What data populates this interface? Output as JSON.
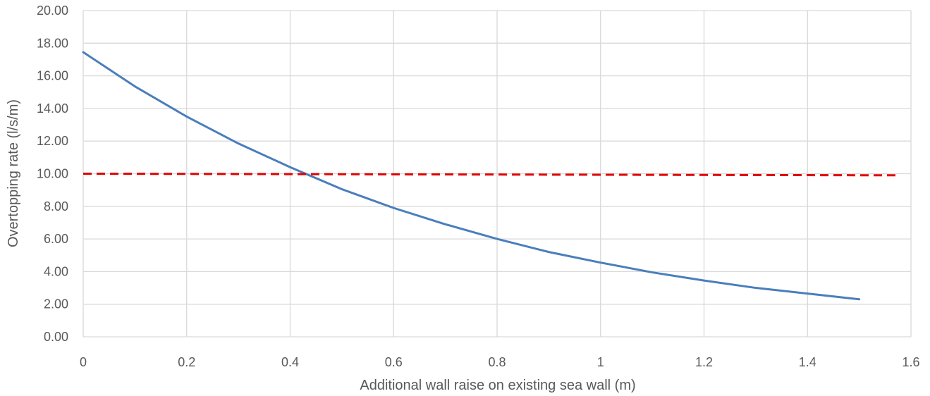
{
  "chart_data": {
    "type": "line",
    "title": "",
    "xlabel": "Additional wall raise on existing sea wall (m)",
    "ylabel": "Overtopping rate (l/s/m)",
    "xlim": [
      0,
      1.6
    ],
    "ylim": [
      0,
      20
    ],
    "x_ticks": [
      "0",
      "0.2",
      "0.4",
      "0.6",
      "0.8",
      "1",
      "1.2",
      "1.4",
      "1.6"
    ],
    "y_ticks": [
      "0.00",
      "2.00",
      "4.00",
      "6.00",
      "8.00",
      "10.00",
      "12.00",
      "14.00",
      "16.00",
      "18.00",
      "20.00"
    ],
    "grid": true,
    "legend": false,
    "series": [
      {
        "style": "solid",
        "color": "#4a7ebb",
        "x": [
          0,
          0.1,
          0.2,
          0.3,
          0.4,
          0.5,
          0.6,
          0.7,
          0.8,
          0.9,
          1.0,
          1.1,
          1.2,
          1.3,
          1.4,
          1.5
        ],
        "y": [
          17.45,
          15.35,
          13.5,
          11.85,
          10.4,
          9.05,
          7.9,
          6.9,
          6.0,
          5.2,
          4.55,
          3.95,
          3.45,
          3.0,
          2.65,
          2.3
        ]
      },
      {
        "style": "dashed",
        "color": "#e00000",
        "x": [
          0,
          1.57
        ],
        "y": [
          10.0,
          9.9
        ]
      }
    ]
  }
}
